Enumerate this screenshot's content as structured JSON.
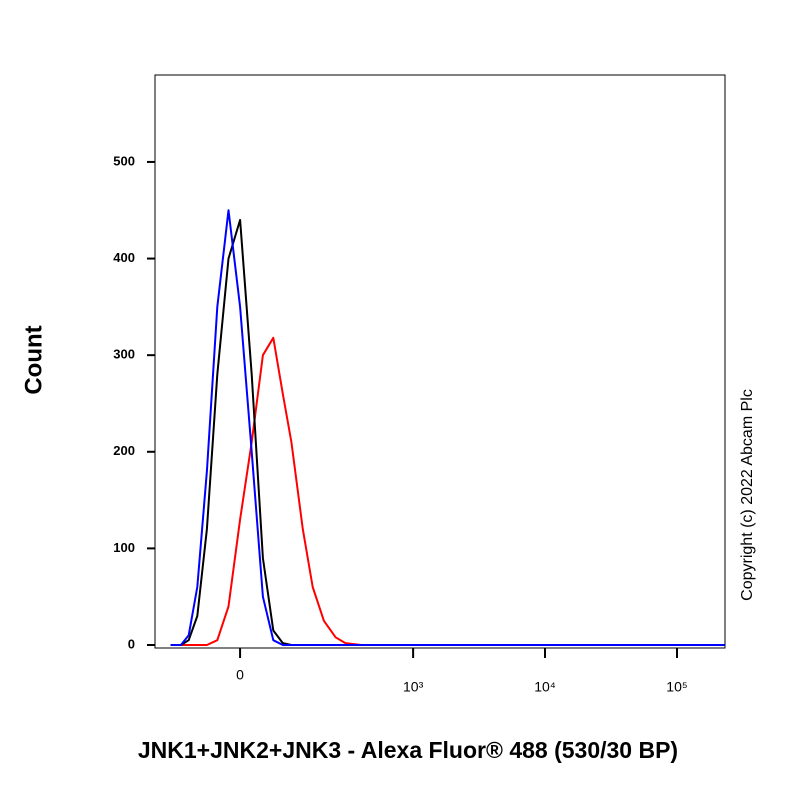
{
  "chart_data": {
    "type": "line",
    "x_label": "JNK1+JNK2+JNK3 - Alexa Fluor® 488 (530/30 BP)",
    "y_label": "Count",
    "annotation": "Copyright (c) 2022 Abcam Plc",
    "xscale": "biexponential",
    "x": [
      -150,
      -120,
      -100,
      -80,
      -60,
      -40,
      -20,
      0,
      20,
      40,
      60,
      80,
      100,
      130,
      160,
      200,
      250,
      300,
      400,
      1000,
      231000
    ],
    "series": [
      {
        "color": "#ff0000",
        "values": [
          0,
          0,
          0,
          0,
          0,
          5,
          40,
          130,
          210,
          300,
          318,
          260,
          210,
          120,
          60,
          25,
          8,
          2,
          0,
          0,
          0
        ]
      },
      {
        "color": "#000000",
        "values": [
          0,
          0,
          5,
          30,
          120,
          280,
          400,
          440,
          280,
          90,
          15,
          2,
          0,
          0,
          0,
          0,
          0,
          0,
          0,
          0,
          0
        ]
      },
      {
        "color": "#0000ff",
        "values": [
          0,
          0,
          10,
          60,
          180,
          350,
          450,
          350,
          200,
          50,
          5,
          0,
          0,
          0,
          0,
          0,
          0,
          0,
          0,
          0,
          0
        ]
      }
    ],
    "xlim": [
      -205,
      231000
    ],
    "xticks": [
      0,
      {
        "value": 1000,
        "label": "10³"
      },
      {
        "value": 10000,
        "label": "10⁴"
      },
      {
        "value": 100000,
        "label": "10⁵"
      }
    ],
    "ylim": [
      0,
      590
    ],
    "yticks": [
      0,
      100,
      200,
      300,
      400,
      500
    ]
  }
}
